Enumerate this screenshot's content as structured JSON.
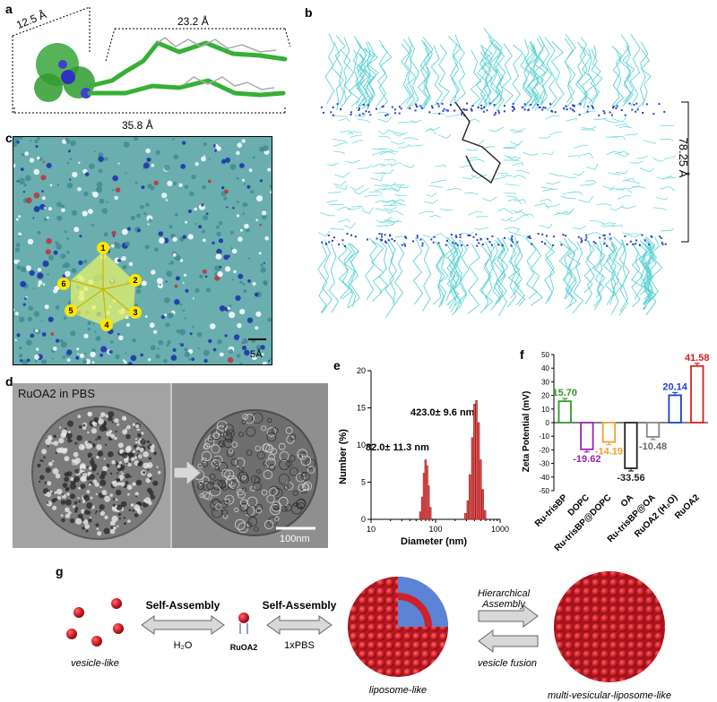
{
  "panels": {
    "a": {
      "label": "a",
      "dim_top_left": "12.5 Å",
      "dim_top_right": "23.2 Å",
      "dim_bottom": "35.8 Å"
    },
    "b": {
      "label": "b",
      "thickness": "78.25 Å"
    },
    "c": {
      "label": "c",
      "scale": "5Å",
      "markers": [
        "1",
        "2",
        "3",
        "4",
        "5",
        "6"
      ]
    },
    "d": {
      "label": "d",
      "title": "RuOA2 in PBS",
      "scale": "100nm"
    },
    "e": {
      "label": "e"
    },
    "f": {
      "label": "f"
    },
    "g": {
      "label": "g",
      "vesicle_like": "vesicle-like",
      "self_assembly_1": "Self-Assembly",
      "h2o": "H₂O",
      "ruoa2": "RuOA2",
      "self_assembly_2": "Self-Assembly",
      "pbs": "1xPBS",
      "liposome_like": "liposome-like",
      "hierarchical_1": "Hierarchical",
      "hierarchical_2": "Assembly",
      "vesicle_fusion": "vesicle fusion",
      "mvl": "multi-vesicular-liposome-like"
    }
  },
  "colors": {
    "membrane": "#5fd3d3",
    "head": "#2a3fbf",
    "red": "#cc1f2a",
    "green": "#2e9c2e",
    "blue_layer": "#5b84d6"
  },
  "chart_data": [
    {
      "type": "bar",
      "panel": "e",
      "xlabel": "Diameter (nm)",
      "ylabel": "Number (%)",
      "x_scale": "log",
      "xlim": [
        10,
        1000
      ],
      "ylim": [
        0,
        20
      ],
      "xticks": [
        "10",
        "100",
        "1000"
      ],
      "yticks": [
        "0",
        "5",
        "10",
        "15",
        "20"
      ],
      "annotations": [
        "82.0± 11.3 nm",
        "423.0± 9.6 nm"
      ],
      "series": [
        {
          "values": [
            {
              "x": 58,
              "y": 1.0
            },
            {
              "x": 62,
              "y": 3.0
            },
            {
              "x": 66,
              "y": 6.2
            },
            {
              "x": 70,
              "y": 8.0
            },
            {
              "x": 74,
              "y": 7.2
            },
            {
              "x": 78,
              "y": 4.5
            },
            {
              "x": 83,
              "y": 1.6
            }
          ]
        },
        {
          "values": [
            {
              "x": 290,
              "y": 0.8
            },
            {
              "x": 315,
              "y": 2.5
            },
            {
              "x": 340,
              "y": 6.0
            },
            {
              "x": 370,
              "y": 11.0
            },
            {
              "x": 400,
              "y": 15.5
            },
            {
              "x": 430,
              "y": 16.0
            },
            {
              "x": 465,
              "y": 13.0
            },
            {
              "x": 500,
              "y": 8.0
            },
            {
              "x": 540,
              "y": 4.0
            },
            {
              "x": 585,
              "y": 1.2
            }
          ]
        }
      ]
    },
    {
      "type": "bar",
      "panel": "f",
      "ylabel": "Zeta Potential (mV)",
      "ylim": [
        -50,
        50
      ],
      "yticks": [
        "50",
        "40",
        "30",
        "20",
        "10",
        "0",
        "-10",
        "-20",
        "-30",
        "-40",
        "-50"
      ],
      "categories": [
        "Ru-trisBP",
        "DOPC",
        "Ru-trisBP@DOPC",
        "OA",
        "Ru-trisBP@OA",
        "RuOA2 (H₂O)",
        "RuOA2"
      ],
      "values": [
        15.7,
        -19.62,
        -14.19,
        -33.56,
        -10.48,
        20.14,
        41.58
      ],
      "labels": [
        "15.70",
        "-19.62",
        "-14.19",
        "-33.56",
        "-10.48",
        "20.14",
        "41.58"
      ],
      "colors": [
        "#2e9c2e",
        "#9b22b3",
        "#f0a030",
        "#222222",
        "#888888",
        "#1f3fcf",
        "#d62020"
      ]
    }
  ]
}
